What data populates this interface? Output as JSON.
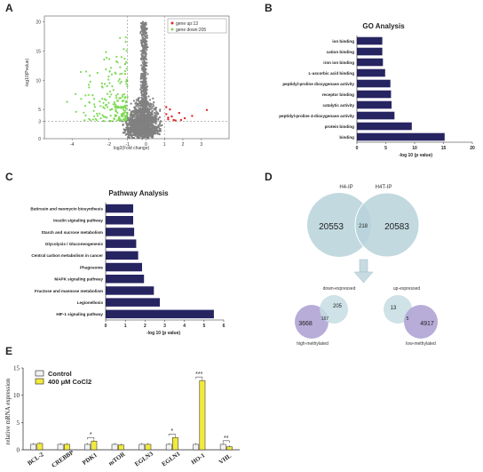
{
  "panels": {
    "A": "A",
    "B": "B",
    "C": "C",
    "D": "D",
    "E": "E"
  },
  "chart_data": [
    {
      "id": "volcano",
      "type": "scatter",
      "xlabel": "log2(Fold change)",
      "ylabel": "-log10(Pvalue)",
      "x_ticks": [
        "-4",
        "-2",
        "-1",
        "0",
        "1",
        "2",
        "3"
      ],
      "y_ticks": [
        "0",
        "3",
        "5",
        "10",
        "15",
        "20"
      ],
      "xlim": [
        -5.5,
        4.5
      ],
      "ylim": [
        0,
        21
      ],
      "threshold_lines": {
        "x": [
          -1,
          1
        ],
        "y": 3
      },
      "legend": [
        "gene up:13",
        "gene down:205"
      ],
      "legend_position": "top-right",
      "series": [
        {
          "name": "gene up:13",
          "color": "#e0282a",
          "count": 13
        },
        {
          "name": "gene down:205",
          "color": "#7ed957",
          "count": 205
        },
        {
          "name": "not significant",
          "color": "#808080"
        }
      ]
    },
    {
      "id": "go",
      "type": "bar",
      "orientation": "horizontal",
      "title": "GO Analysis",
      "xlabel": "-log 10 (p value)",
      "xlim": [
        0,
        20
      ],
      "x_ticks": [
        0,
        5,
        10,
        15,
        20
      ],
      "color": "#262461",
      "categories": [
        "ion binding",
        "cation binding",
        "iron ion binding",
        "L-ascorbic acid binding",
        "peptidyl-proline dioxygenase activity",
        "receptor binding",
        "catalytic activity",
        "peptidyl-proline 4-dioxygenase activity",
        "protein binding",
        "binding"
      ],
      "values": [
        4.4,
        4.4,
        4.5,
        4.9,
        5.8,
        5.9,
        6.0,
        6.5,
        9.5,
        15.2
      ]
    },
    {
      "id": "pathway",
      "type": "bar",
      "orientation": "horizontal",
      "title": "Pathway Analysis",
      "xlabel": "-log 10 (p value)",
      "xlim": [
        0,
        6
      ],
      "x_ticks": [
        0,
        1,
        2,
        3,
        4,
        5,
        6
      ],
      "color": "#262461",
      "categories": [
        "Butirosin and neomycin biosynthesis",
        "Insulin signaling pathway",
        "Starch and sucrose metabolism",
        "Glycolysis / Gluconeogenesis",
        "Central carbon metabolism in cancer",
        "Phagosome",
        "MAPK signaling pathway",
        "Fructose and mannose metabolism",
        "Legionellosis",
        "HIF-1 signaling pathway"
      ],
      "values": [
        1.4,
        1.4,
        1.45,
        1.55,
        1.65,
        1.85,
        1.95,
        2.45,
        2.75,
        5.5
      ]
    },
    {
      "id": "venn",
      "type": "venn",
      "top": {
        "left_label": "H4-IP",
        "right_label": "H4T-IP",
        "left_only": "20553",
        "overlap": "218",
        "right_only": "20583"
      },
      "bottom_left": {
        "title": "down-expressed",
        "left_only": "3668",
        "overlap": "167",
        "right_only": "205",
        "caption": "high-methylated"
      },
      "bottom_right": {
        "title": "up-expressed",
        "left_only": "13",
        "overlap": "5",
        "right_only": "4917",
        "caption": "low-methylated"
      }
    },
    {
      "id": "mrna",
      "type": "bar",
      "ylabel": "relative mRNA expression",
      "ylim": [
        0,
        15
      ],
      "y_ticks": [
        0,
        5,
        10,
        15
      ],
      "categories": [
        "BCL-2",
        "CREBBP",
        "PDK1",
        "mTOR",
        "EGLN3",
        "EGLN1",
        "HO-1",
        "VHL"
      ],
      "series": [
        {
          "name": "Control",
          "color": "#f2f2f2",
          "values": [
            1.0,
            1.0,
            1.0,
            1.0,
            1.0,
            1.0,
            1.0,
            1.0
          ]
        },
        {
          "name": "400 μM CoCl2",
          "color": "#f2ea3c",
          "values": [
            1.15,
            1.0,
            1.6,
            0.9,
            1.0,
            2.25,
            12.7,
            0.55
          ]
        }
      ],
      "significance": {
        "PDK1": "*",
        "EGLN1": "*",
        "HO-1": "***",
        "VHL": "**"
      },
      "legend_position": "top-left"
    }
  ]
}
